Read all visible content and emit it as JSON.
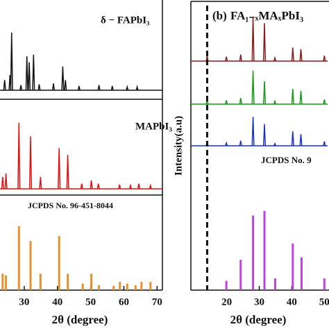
{
  "chart_data": [
    {
      "type": "stem",
      "xlabel": "2θ (degree)",
      "xlim": [
        22.7,
        71.6
      ],
      "xticks": [
        30,
        40,
        50,
        60,
        70
      ],
      "ylim": [
        0,
        100
      ],
      "series": [
        {
          "name": "δ − FAPbI₃",
          "color": "#111111",
          "style": "line",
          "x": [
            24.1,
            25.7,
            26.2,
            29.0,
            30.8,
            31.5,
            32.8,
            34.5,
            38.8,
            41.6,
            42.4,
            46.5,
            52.5,
            56.5,
            61.0,
            64.0
          ],
          "values": [
            12,
            18,
            68,
            6,
            40,
            33,
            42,
            7,
            8,
            28,
            12,
            5,
            6,
            5,
            4,
            4
          ]
        },
        {
          "name": "MAPbI₃",
          "color": "#e01010",
          "style": "line",
          "x": [
            23.5,
            24.5,
            28.4,
            31.9,
            34.9,
            40.5,
            43.1,
            47.3,
            50.2,
            52.3,
            58.7,
            62.0,
            64.5,
            68.0
          ],
          "values": [
            14,
            18,
            78,
            62,
            14,
            48,
            40,
            6,
            10,
            6,
            5,
            4,
            6,
            4
          ]
        },
        {
          "name": "JCPDS No. 96-451-8044",
          "color": "#e8902a",
          "style": "bar",
          "x": [
            23.5,
            24.5,
            28.4,
            31.9,
            34.9,
            40.5,
            43.1,
            47.6,
            50.2,
            52.5,
            56.9,
            58.8,
            61.0,
            63.5,
            65.3,
            68.0
          ],
          "values": [
            20,
            18,
            78,
            60,
            20,
            66,
            20,
            8,
            20,
            6,
            5,
            10,
            8,
            6,
            10,
            10
          ]
        }
      ]
    },
    {
      "type": "stem",
      "panel_label": "(b)",
      "title": "FA₁₋ₓMAₓPbI₃",
      "ylabel": "Intensity(a.u)",
      "xlabel": "2θ (degree)",
      "xlim": [
        9,
        51
      ],
      "xticks": [
        20,
        30,
        40,
        50
      ],
      "vline": 14,
      "ylim": [
        0,
        100
      ],
      "series": [
        {
          "color": "#8b1a1a",
          "style": "line",
          "x": [
            14.0,
            19.9,
            24.3,
            28.1,
            31.6,
            34.8,
            40.3,
            42.8,
            50.0
          ],
          "values": [
            10,
            8,
            12,
            82,
            70,
            6,
            25,
            22,
            10
          ]
        },
        {
          "color": "#1a9a1a",
          "style": "line",
          "x": [
            14.0,
            19.9,
            24.3,
            28.1,
            31.6,
            34.8,
            40.3,
            42.8,
            50.0
          ],
          "values": [
            14,
            10,
            16,
            88,
            60,
            8,
            40,
            35,
            12
          ]
        },
        {
          "color": "#1a2fd0",
          "style": "line",
          "x": [
            14.0,
            19.9,
            24.3,
            28.1,
            31.6,
            34.8,
            40.3,
            42.8,
            50.0
          ],
          "values": [
            12,
            8,
            14,
            80,
            60,
            6,
            40,
            32,
            12
          ]
        },
        {
          "name": "JCPDS No. 9",
          "color": "#c040e0",
          "style": "bar",
          "x": [
            19.9,
            24.3,
            28.1,
            31.6,
            34.9,
            40.3,
            43.0,
            50.0
          ],
          "values": [
            8,
            26,
            64,
            68,
            10,
            40,
            28,
            10
          ]
        }
      ]
    }
  ]
}
